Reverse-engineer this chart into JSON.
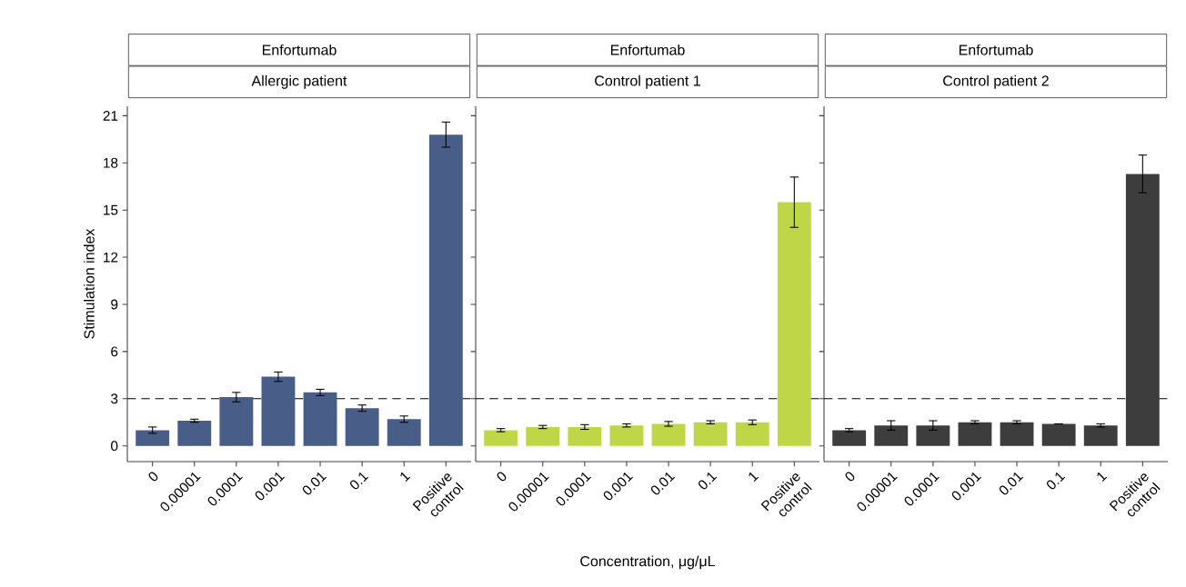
{
  "chart_data": [
    {
      "type": "bar",
      "title": "Enfortumab",
      "subtitle": "Allergic patient",
      "ylabel": "Stimulation index",
      "categories": [
        "0",
        "0.00001",
        "0.0001",
        "0.001",
        "0.01",
        "0.1",
        "1",
        "Positive control"
      ],
      "values": [
        1.0,
        1.6,
        3.1,
        4.4,
        3.4,
        2.4,
        1.7,
        19.8
      ],
      "errors": [
        0.2,
        0.1,
        0.3,
        0.3,
        0.2,
        0.2,
        0.2,
        0.8
      ],
      "color": "#485d87",
      "ylim": [
        -1,
        21.6
      ],
      "yticks": [
        0,
        3,
        6,
        9,
        12,
        15,
        18,
        21
      ],
      "ref_lines": [
        {
          "axis": "y",
          "value": 3,
          "line_style": "dashed"
        }
      ]
    },
    {
      "type": "bar",
      "title": "Enfortumab",
      "subtitle": "Control patient 1",
      "xlabel": "Concentration, μg/μL",
      "categories": [
        "0",
        "0.00001",
        "0.0001",
        "0.001",
        "0.01",
        "0.1",
        "1",
        "Positive control"
      ],
      "values": [
        1.0,
        1.2,
        1.2,
        1.3,
        1.4,
        1.5,
        1.5,
        15.5
      ],
      "errors": [
        0.1,
        0.1,
        0.15,
        0.1,
        0.15,
        0.1,
        0.15,
        1.6
      ],
      "color": "#bfd647",
      "ylim": [
        -1,
        21.6
      ],
      "yticks": [
        0,
        3,
        6,
        9,
        12,
        15,
        18,
        21
      ],
      "tick_labels": "x",
      "ref_lines": [
        {
          "axis": "y",
          "value": 3,
          "line_style": "dashed"
        }
      ]
    },
    {
      "type": "bar",
      "title": "Enfortumab",
      "subtitle": "Control patient 2",
      "categories": [
        "0",
        "0.00001",
        "0.0001",
        "0.001",
        "0.01",
        "0.1",
        "1",
        "Positive control"
      ],
      "values": [
        1.0,
        1.3,
        1.3,
        1.5,
        1.5,
        1.4,
        1.3,
        17.3
      ],
      "errors": [
        0.1,
        0.3,
        0.3,
        0.1,
        0.1,
        null,
        0.1,
        1.2
      ],
      "color": "#3d3d3d",
      "ylim": [
        -1,
        21.6
      ],
      "yticks": [
        0,
        3,
        6,
        9,
        12,
        15,
        18,
        21
      ],
      "tick_labels": "x",
      "ref_lines": [
        {
          "axis": "y",
          "value": 3,
          "line_style": "dashed"
        }
      ]
    }
  ]
}
